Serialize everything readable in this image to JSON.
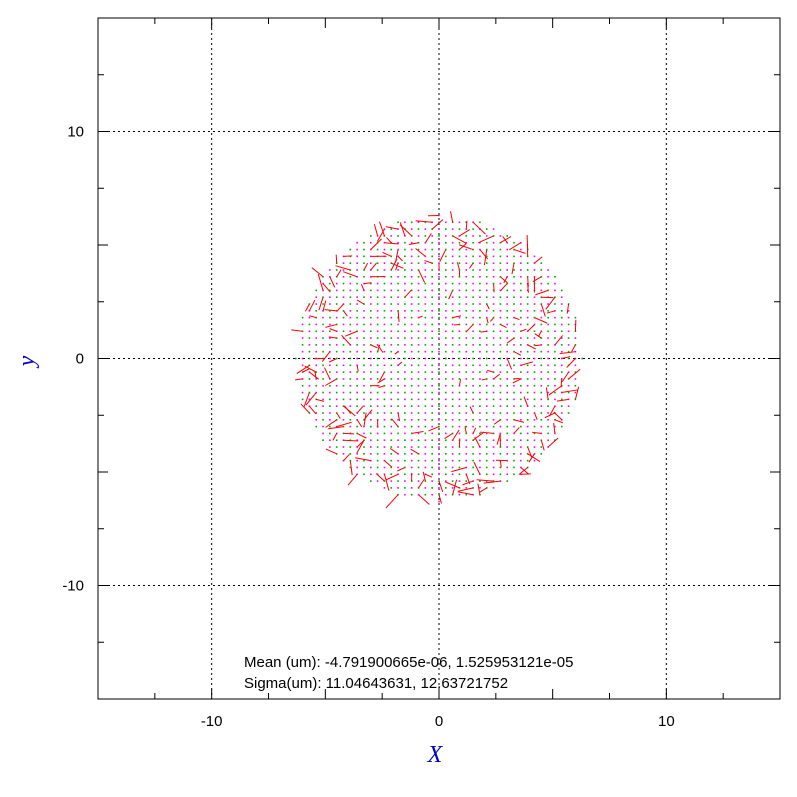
{
  "chart_data": {
    "type": "scatter",
    "xlabel": "X",
    "ylabel": "y",
    "xlim": [
      -15,
      15
    ],
    "ylim": [
      -15,
      15
    ],
    "x_ticks": [
      -10,
      0,
      10
    ],
    "y_ticks": [
      -10,
      0,
      10
    ],
    "x_tick_labels": [
      "-10",
      "0",
      "10"
    ],
    "y_tick_labels": [
      "-10",
      "0",
      "10"
    ],
    "grid": true,
    "series": [
      {
        "points": "regular grid of sample points filling a disk",
        "center": [
          0,
          0
        ],
        "radius": 6.3,
        "grid_spacing": 0.3,
        "marker_colors": [
          "#ff00ff",
          "#00aa00"
        ],
        "vector_color": "#ff0000",
        "vector_max_length": 0.5
      }
    ],
    "annotations": {
      "mean": "Mean (um): -4.791900665e-06, 1.525953121e-05",
      "sigma": "Sigma(um): 11.04643631, 12.63721752"
    },
    "colors": {
      "axis_label": "#0000cc",
      "grid": "#000000",
      "frame": "#000000"
    }
  }
}
